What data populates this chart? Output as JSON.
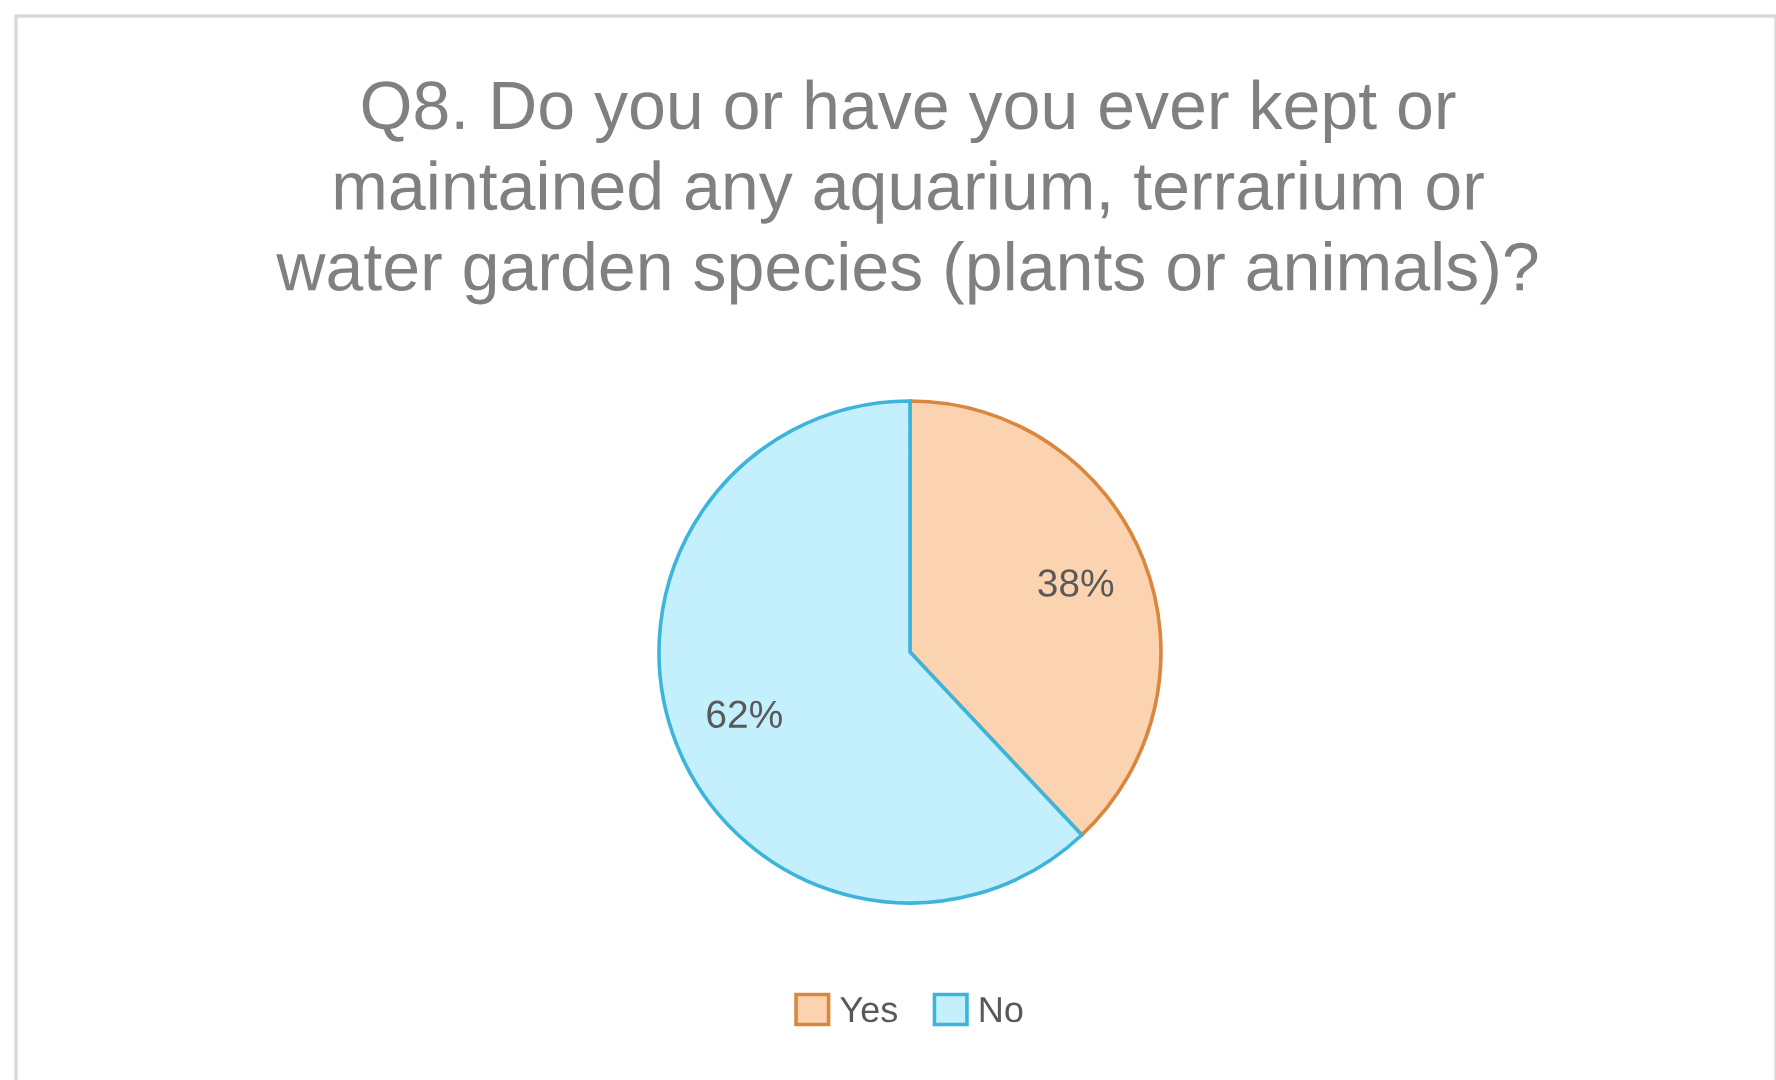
{
  "chart_data": {
    "type": "pie",
    "title": "Q8. Do you or have you ever kept or\nmaintained any aquarium, terrarium or\nwater garden species (plants or animals)?",
    "categories": [
      "Yes",
      "No"
    ],
    "values": [
      38,
      62
    ],
    "colors": [
      "#fcd3b0",
      "#c4effd"
    ],
    "value_labels": [
      "38%",
      "62%"
    ],
    "legend": "bottom"
  }
}
